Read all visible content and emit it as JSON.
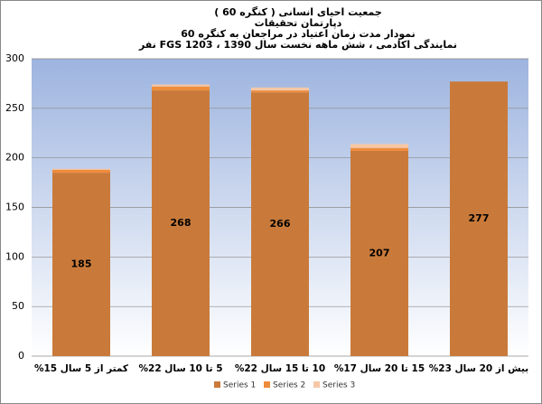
{
  "chart_data": {
    "type": "bar",
    "stacked": true,
    "title": [
      "جمعیت احیای انسانی ( کنگره 60 )",
      "دپارتمان تحقیقات",
      "نمودار مدت زمان اعتیاد در مراجعان به کنگره 60",
      "نمایندگی اکادمی ، شش ماهه نخست سال 1390 ، FGS 1203 نفر"
    ],
    "categories": [
      "کمتر از 5 سال 15%",
      "5 تا 10 سال 22%",
      "10 تا 15 سال 22%",
      "15 تا 20 سال 17%",
      "بیش از 20 سال 23%"
    ],
    "series": [
      {
        "name": "Series 1",
        "color": "#c97a3a",
        "values": [
          185,
          268,
          266,
          207,
          277
        ]
      },
      {
        "name": "Series 2",
        "color": "#ef8c3c",
        "values": [
          3,
          4,
          2,
          3,
          0
        ]
      },
      {
        "name": "Series 3",
        "color": "#f6c7a6",
        "values": [
          1,
          2,
          3,
          4,
          0
        ]
      }
    ],
    "ylim": [
      0,
      300
    ],
    "yticks": [
      0,
      50,
      100,
      150,
      200,
      250,
      300
    ],
    "grid": true
  }
}
